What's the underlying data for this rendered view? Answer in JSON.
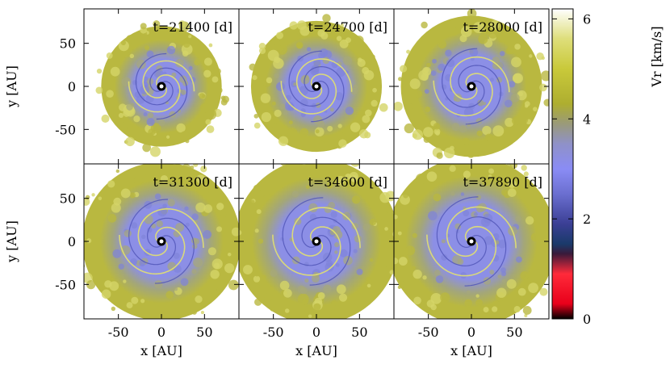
{
  "chart_data": {
    "type": "heatmap",
    "description_free": true,
    "layout_rows": 2,
    "layout_cols": 3,
    "panels": [
      {
        "time_label": "t=21400 [d]",
        "t_days": 21400
      },
      {
        "time_label": "t=24700 [d]",
        "t_days": 24700
      },
      {
        "time_label": "t=28000 [d]",
        "t_days": 28000
      },
      {
        "time_label": "t=31300 [d]",
        "t_days": 31300
      },
      {
        "time_label": "t=34600 [d]",
        "t_days": 34600
      },
      {
        "time_label": "t=37890 [d]",
        "t_days": 37890
      }
    ],
    "xlabel": "x [AU]",
    "ylabel": "y [AU]",
    "xlim": [
      -90,
      90
    ],
    "ylim": [
      -90,
      90
    ],
    "x_ticks": [
      -50,
      0,
      50
    ],
    "y_ticks": [
      -50,
      0,
      50
    ],
    "x_tick_labels": [
      "-50",
      "0",
      "50"
    ],
    "y_tick_labels": [
      "-50",
      "0",
      "50"
    ],
    "colorbar": {
      "label": "Vr [km/s]",
      "range": [
        0,
        6.2
      ],
      "ticks": [
        0,
        2,
        4,
        6
      ],
      "tick_labels": [
        "0",
        "2",
        "4",
        "6"
      ],
      "stops": [
        {
          "value": 0.0,
          "color": "#000000"
        },
        {
          "value": 0.3,
          "color": "#e8001a"
        },
        {
          "value": 0.9,
          "color": "#ff2a3a"
        },
        {
          "value": 1.3,
          "color": "#3a1a3a"
        },
        {
          "value": 1.5,
          "color": "#1a3a6a"
        },
        {
          "value": 1.9,
          "color": "#3b3f95"
        },
        {
          "value": 2.5,
          "color": "#6b6fd0"
        },
        {
          "value": 3.0,
          "color": "#8a8cf5"
        },
        {
          "value": 3.5,
          "color": "#8f91c8"
        },
        {
          "value": 3.9,
          "color": "#9a9a7a"
        },
        {
          "value": 4.3,
          "color": "#aeae30"
        },
        {
          "value": 5.0,
          "color": "#c9c93a"
        },
        {
          "value": 5.6,
          "color": "#dede7a"
        },
        {
          "value": 6.2,
          "color": "#ffffff"
        }
      ]
    },
    "colors": {
      "background": "#ffffff",
      "disk_outer": "#b9b840",
      "disk_inner": "#8c8fe6",
      "spiral_light": "#e6e56a",
      "center": "#000000"
    }
  }
}
